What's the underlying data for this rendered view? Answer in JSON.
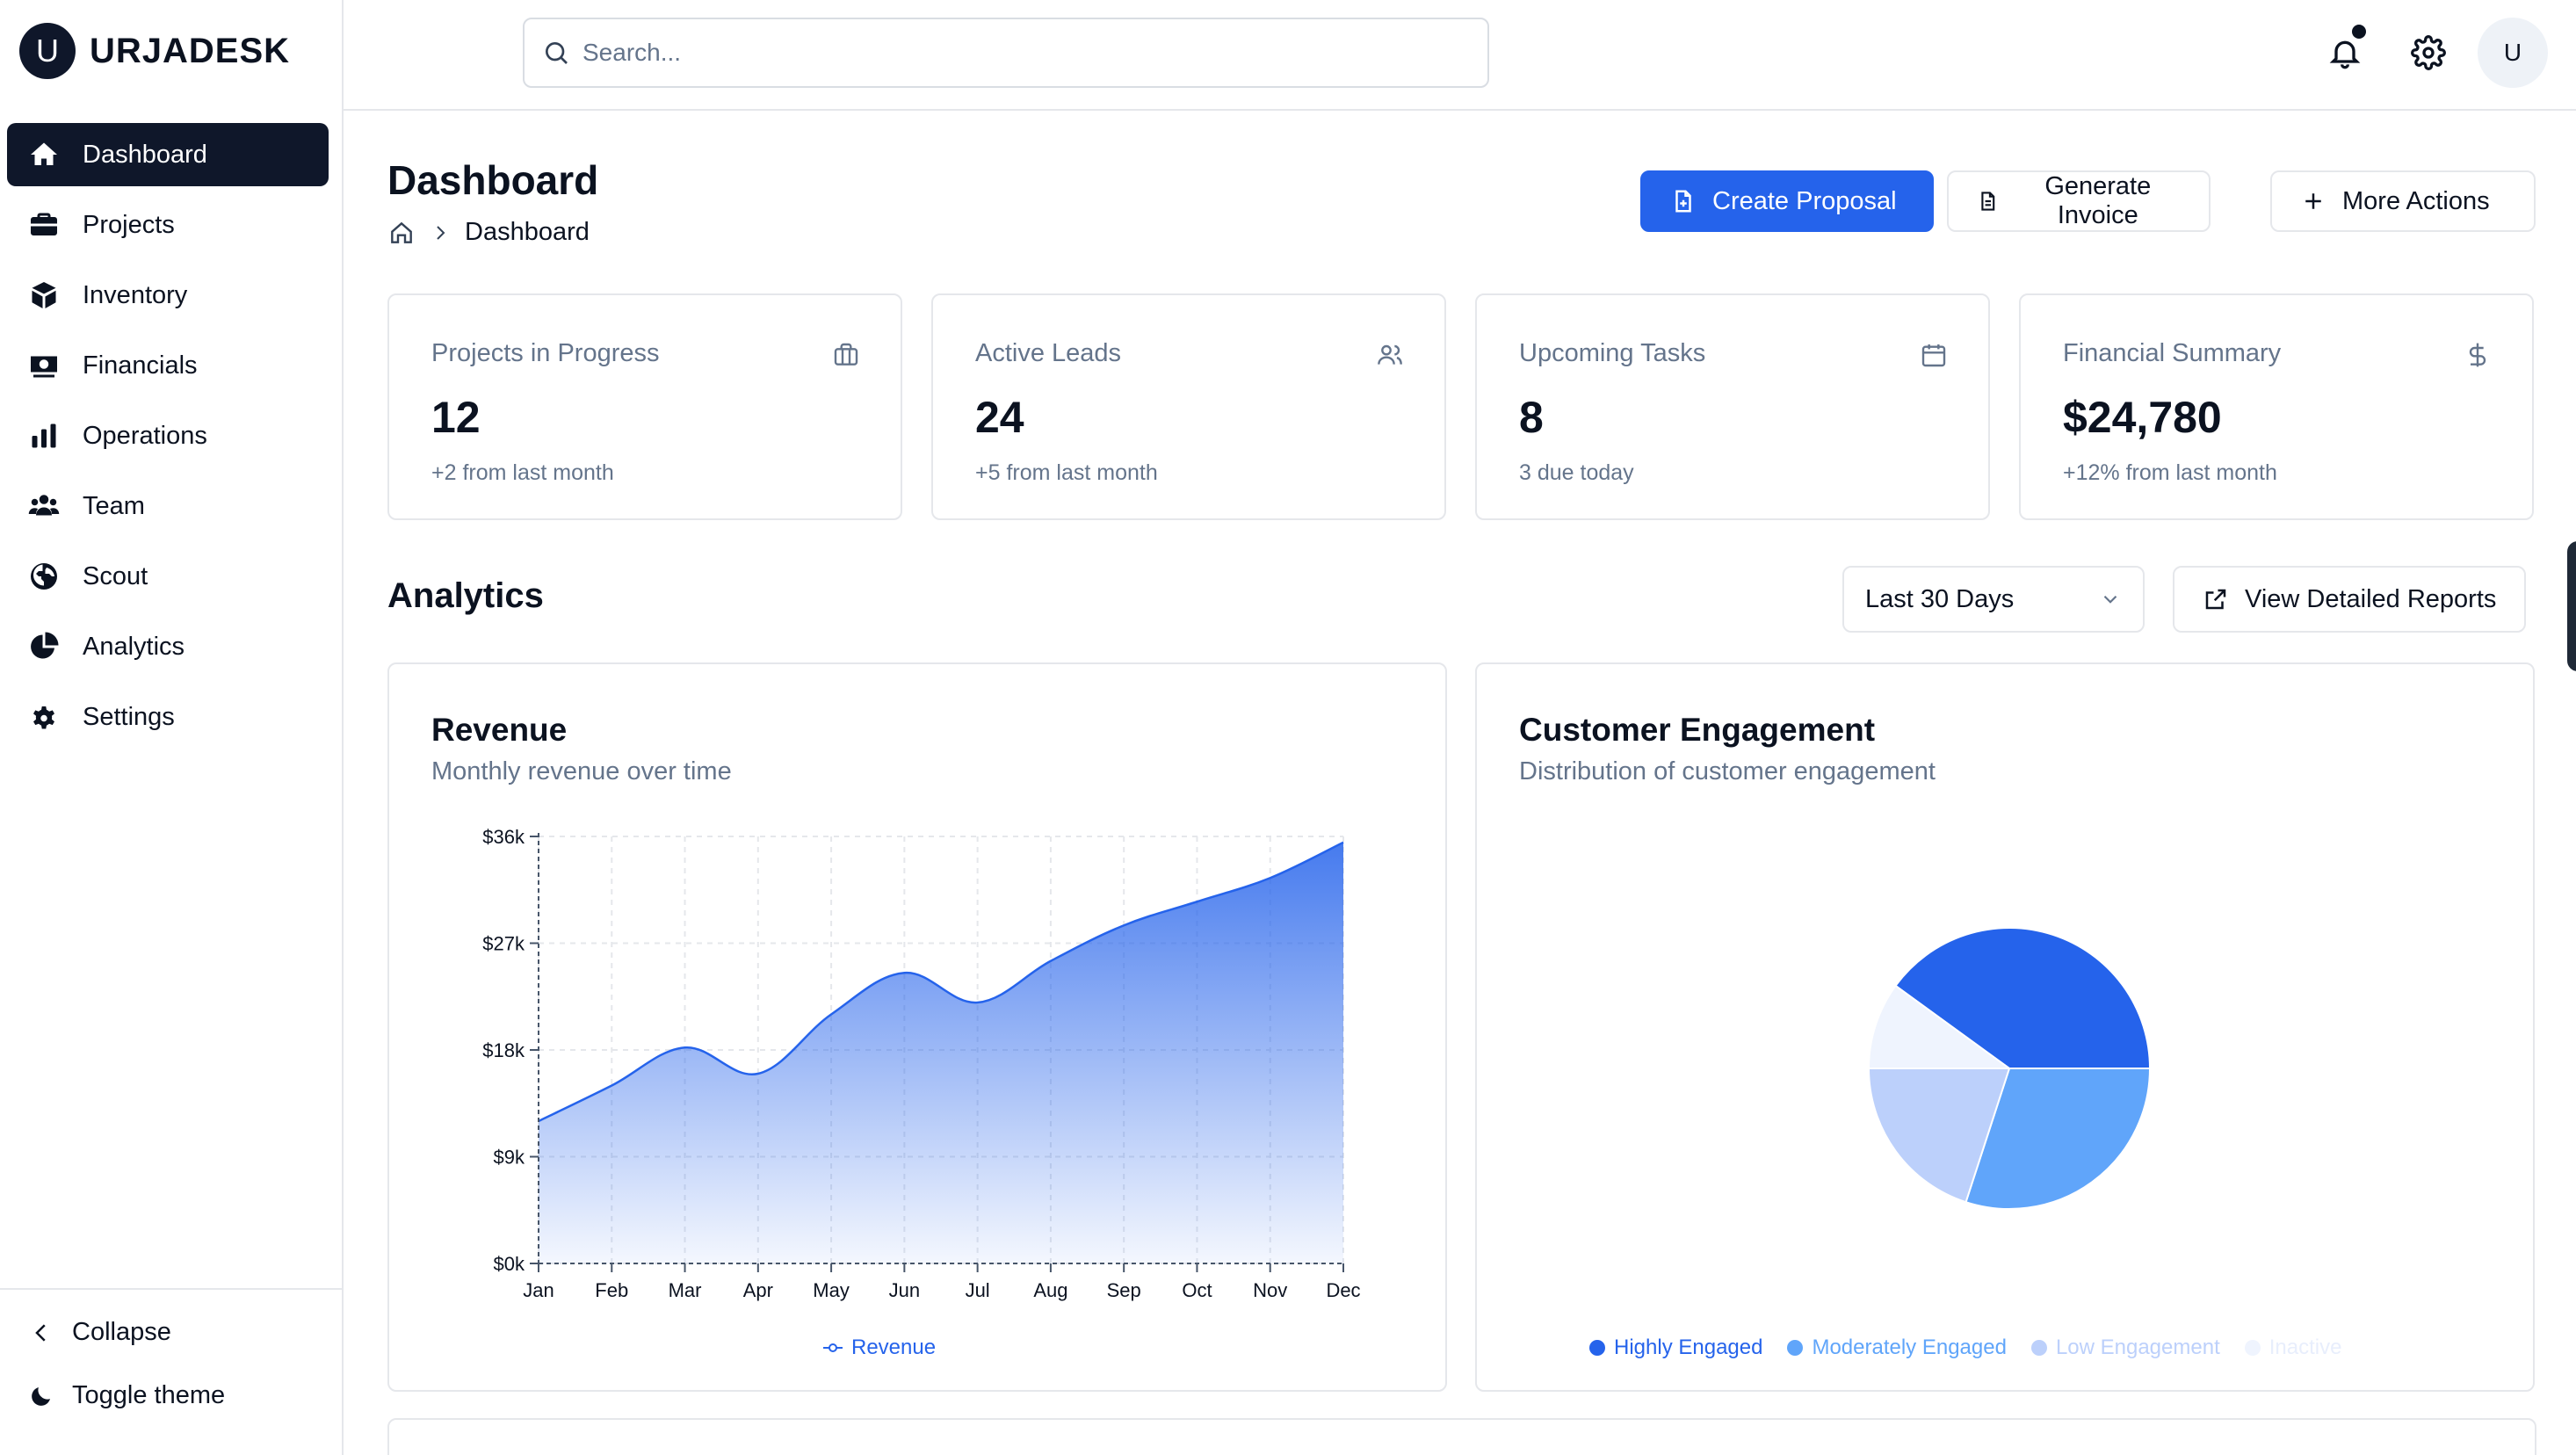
{
  "brand": {
    "logo_letter": "U",
    "name": "URJADESK"
  },
  "sidebar": {
    "items": [
      {
        "label": "Dashboard",
        "icon": "home-icon",
        "active": true
      },
      {
        "label": "Projects",
        "icon": "briefcase-icon"
      },
      {
        "label": "Inventory",
        "icon": "box-icon"
      },
      {
        "label": "Financials",
        "icon": "money-icon"
      },
      {
        "label": "Operations",
        "icon": "bar-chart-icon"
      },
      {
        "label": "Team",
        "icon": "users-icon"
      },
      {
        "label": "Scout",
        "icon": "globe-icon"
      },
      {
        "label": "Analytics",
        "icon": "pie-icon"
      },
      {
        "label": "Settings",
        "icon": "gear-icon"
      }
    ],
    "collapse_label": "Collapse",
    "theme_label": "Toggle theme"
  },
  "topbar": {
    "search_placeholder": "Search...",
    "avatar_letter": "U"
  },
  "page": {
    "title": "Dashboard",
    "breadcrumb_current": "Dashboard"
  },
  "actions": {
    "create_proposal": "Create Proposal",
    "generate_invoice": "Generate Invoice",
    "more_actions": "More Actions"
  },
  "stats": [
    {
      "label": "Projects in Progress",
      "value": "12",
      "sub": "+2 from last month",
      "icon": "briefcase-icon"
    },
    {
      "label": "Active Leads",
      "value": "24",
      "sub": "+5 from last month",
      "icon": "users-icon"
    },
    {
      "label": "Upcoming Tasks",
      "value": "8",
      "sub": "3 due today",
      "icon": "calendar-icon"
    },
    {
      "label": "Financial Summary",
      "value": "$24,780",
      "sub": "+12% from last month",
      "icon": "dollar-icon"
    }
  ],
  "analytics": {
    "title": "Analytics",
    "range_selected": "Last 30 Days",
    "report_button": "View Detailed Reports"
  },
  "revenue_card": {
    "title": "Revenue",
    "subtitle": "Monthly revenue over time"
  },
  "engagement_card": {
    "title": "Customer Engagement",
    "subtitle": "Distribution of customer engagement"
  },
  "colors": {
    "accent": "#2563eb",
    "dark": "#0f172a",
    "border": "#e5e7eb",
    "muted": "#64748b"
  },
  "chart_data": [
    {
      "type": "area",
      "categories": [
        "Jan",
        "Feb",
        "Mar",
        "Apr",
        "May",
        "Jun",
        "Jul",
        "Aug",
        "Sep",
        "Oct",
        "Nov",
        "Dec"
      ],
      "series": [
        {
          "name": "Revenue",
          "values": [
            12000,
            15000,
            18200,
            16000,
            21000,
            24500,
            22000,
            25500,
            28500,
            30500,
            32500,
            35500
          ]
        }
      ],
      "y_ticks": [
        "$0k",
        "$9k",
        "$18k",
        "$27k",
        "$36k"
      ],
      "ylim": [
        0,
        36000
      ],
      "grid": true,
      "legend": "bottom"
    },
    {
      "type": "pie",
      "series": [
        {
          "name": "Highly Engaged",
          "value": 40,
          "color": "#2563eb"
        },
        {
          "name": "Moderately Engaged",
          "value": 30,
          "color": "#60a5fa"
        },
        {
          "name": "Low Engagement",
          "value": 20,
          "color": "#bcd0fb"
        },
        {
          "name": "Inactive",
          "value": 10,
          "color": "#eff4fe"
        }
      ],
      "legend": "bottom"
    }
  ]
}
